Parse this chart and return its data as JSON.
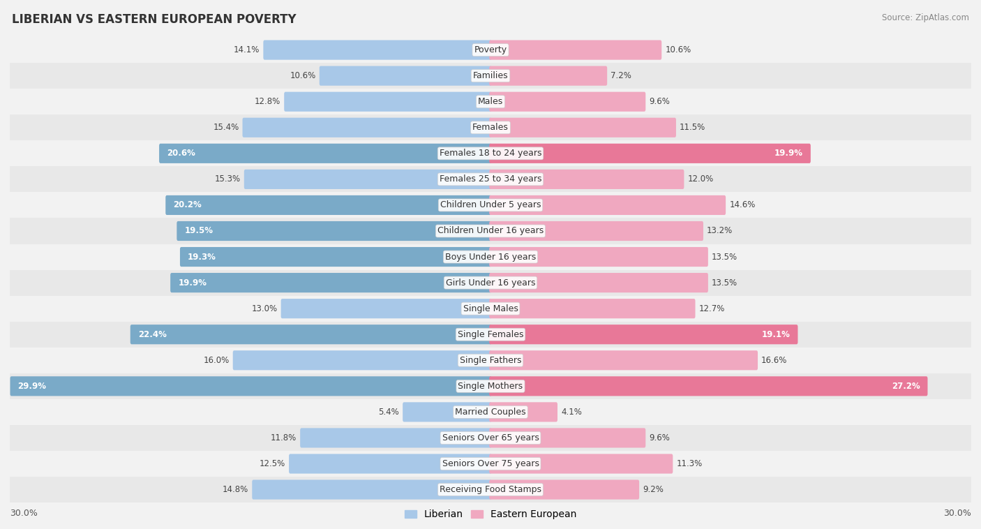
{
  "title": "LIBERIAN VS EASTERN EUROPEAN POVERTY",
  "source": "Source: ZipAtlas.com",
  "categories": [
    "Poverty",
    "Families",
    "Males",
    "Females",
    "Females 18 to 24 years",
    "Females 25 to 34 years",
    "Children Under 5 years",
    "Children Under 16 years",
    "Boys Under 16 years",
    "Girls Under 16 years",
    "Single Males",
    "Single Females",
    "Single Fathers",
    "Single Mothers",
    "Married Couples",
    "Seniors Over 65 years",
    "Seniors Over 75 years",
    "Receiving Food Stamps"
  ],
  "liberian": [
    14.1,
    10.6,
    12.8,
    15.4,
    20.6,
    15.3,
    20.2,
    19.5,
    19.3,
    19.9,
    13.0,
    22.4,
    16.0,
    29.9,
    5.4,
    11.8,
    12.5,
    14.8
  ],
  "eastern_european": [
    10.6,
    7.2,
    9.6,
    11.5,
    19.9,
    12.0,
    14.6,
    13.2,
    13.5,
    13.5,
    12.7,
    19.1,
    16.6,
    27.2,
    4.1,
    9.6,
    11.3,
    9.2
  ],
  "liberian_color_normal": "#a8c8e8",
  "liberian_color_high": "#7aaac8",
  "eastern_european_color_normal": "#f0a8c0",
  "eastern_european_color_high": "#e87898",
  "axis_max": 30.0,
  "bar_height": 0.6,
  "row_bg_light": "#f2f2f2",
  "row_bg_dark": "#e8e8e8",
  "label_fontsize": 9.0,
  "value_fontsize": 8.5,
  "title_fontsize": 12,
  "high_threshold_lib": 19.0,
  "high_threshold_east": 18.5
}
